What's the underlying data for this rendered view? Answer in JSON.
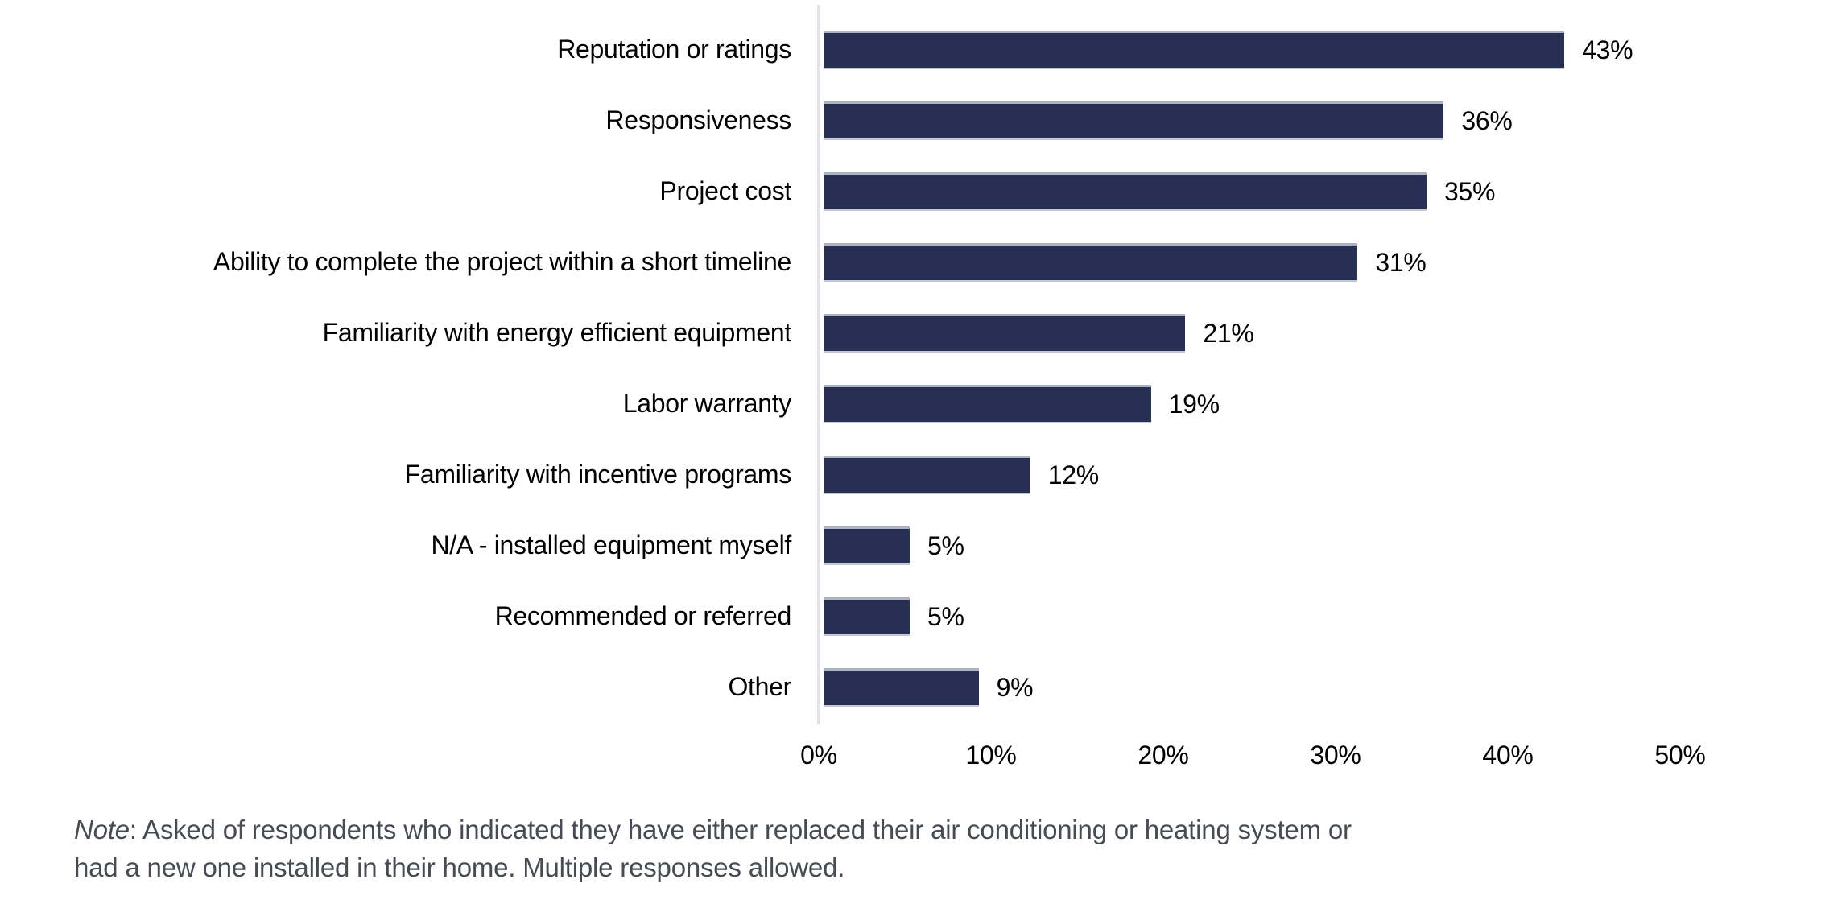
{
  "chart_data": {
    "type": "bar",
    "orientation": "horizontal",
    "title": "",
    "xlabel": "",
    "ylabel": "",
    "categories": [
      "Reputation or ratings",
      "Responsiveness",
      "Project cost",
      "Ability to complete the project within a short timeline",
      "Familiarity with energy efficient equipment",
      "Labor warranty",
      "Familiarity with incentive programs",
      "N/A - installed equipment myself",
      "Recommended or referred",
      "Other"
    ],
    "values": [
      43,
      36,
      35,
      31,
      21,
      19,
      12,
      5,
      5,
      9
    ],
    "value_labels": [
      "43%",
      "36%",
      "35%",
      "31%",
      "21%",
      "19%",
      "12%",
      "5%",
      "5%",
      "9%"
    ],
    "xlim": [
      0,
      50
    ],
    "x_ticks": [
      "0%",
      "10%",
      "20%",
      "30%",
      "40%",
      "50%"
    ],
    "grid": false,
    "legend": "none",
    "bar_color": "#272F52",
    "bar_edge_color": "#ABB1BF",
    "axis_line_color": "#E2E4E9",
    "label_color": "#000000",
    "note_color": "#474B54"
  },
  "note": {
    "prefix": "Note",
    "line1": ": Asked of respondents who indicated they have either replaced their air conditioning or heating system or",
    "line2": "had a new one installed in their home. Multiple responses allowed."
  }
}
